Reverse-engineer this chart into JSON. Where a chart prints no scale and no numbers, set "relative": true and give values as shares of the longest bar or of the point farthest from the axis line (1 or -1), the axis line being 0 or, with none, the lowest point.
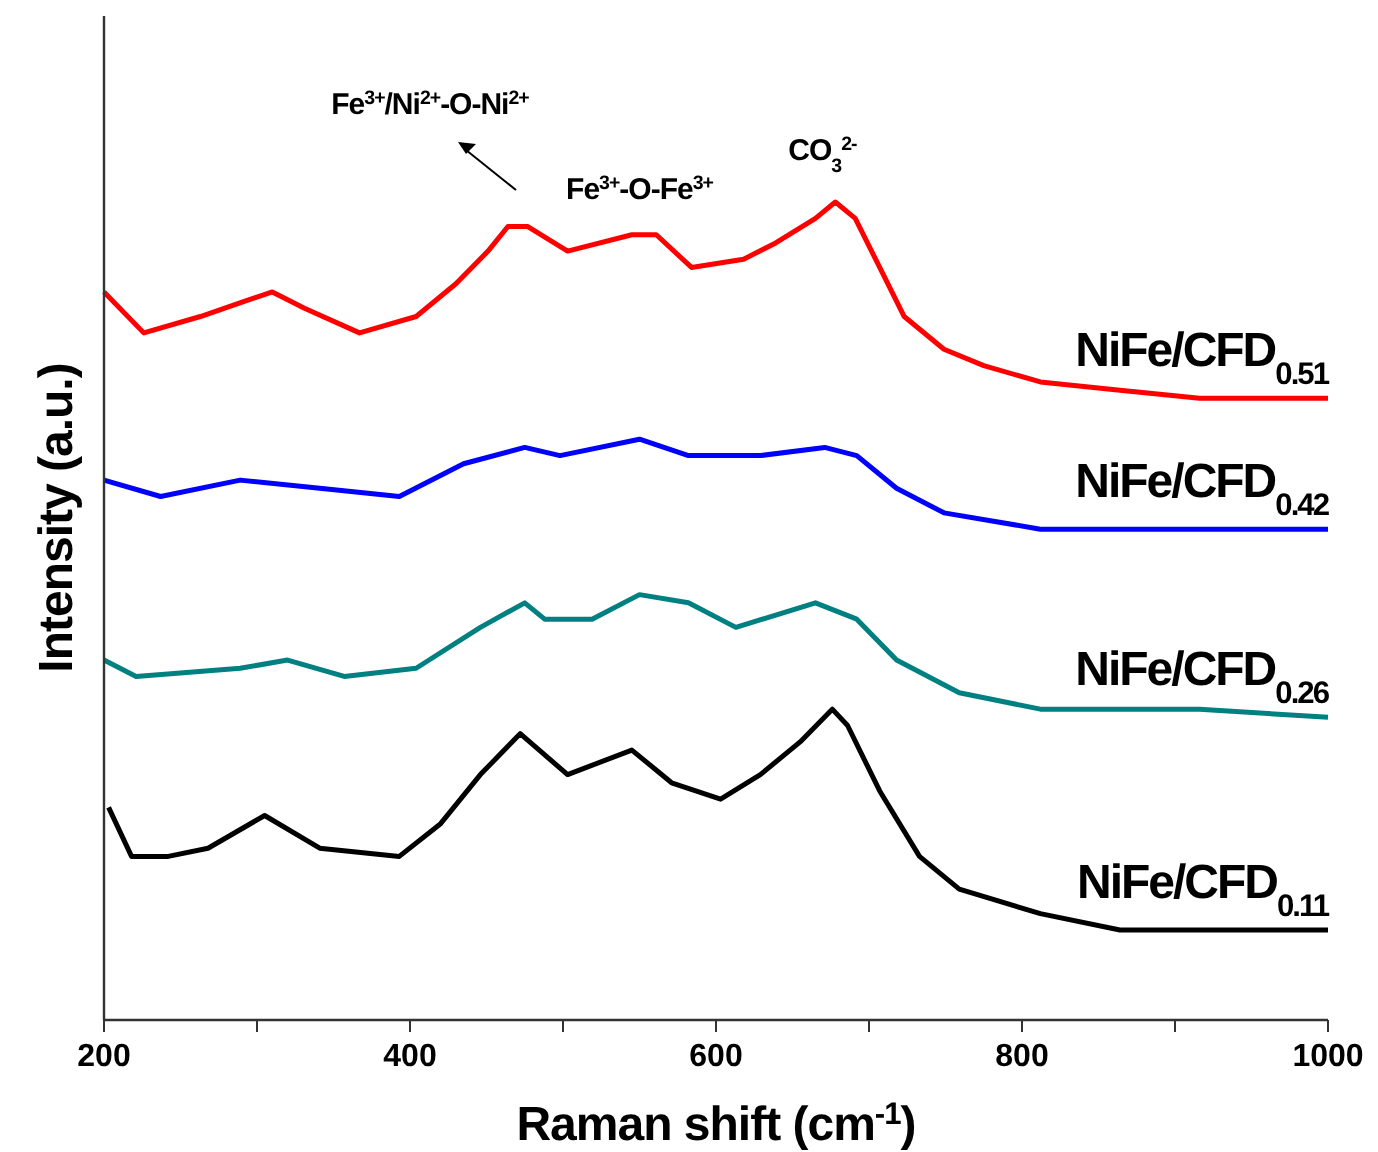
{
  "chart_data": {
    "type": "line",
    "relative": true,
    "xlabel": "Raman shift (cm$^{-1}$)",
    "ylabel": "Intensity (a.u.)",
    "xlim": [
      200,
      1000
    ],
    "xticks": [
      200,
      {
        "value": 300,
        "label": null
      },
      400,
      {
        "value": 500,
        "label": null
      },
      600,
      {
        "value": 700,
        "label": null
      },
      800,
      {
        "value": 900,
        "label": null
      },
      1000
    ],
    "grid": false,
    "marker": "none",
    "line_style": "solid",
    "annotations": [
      "Fe$^{3+}$/Ni$^{2+}$-O-Ni$^{2+}$",
      {
        "text": "Fe$^{3+}$-O-Fe$^{3+}$",
        "x": 550,
        "y": 0.96
      },
      {
        "text": "CO$_{3}$$^{2-}$",
        "x": 680,
        "y": 1.0
      }
    ],
    "series": [
      {
        "name": "NiFe/CFD$_{0.51}$",
        "color": "#ff0000",
        "x": [
          200,
          226,
          263,
          294,
          310,
          331,
          367,
          404,
          430,
          451,
          464,
          477,
          503,
          545,
          561,
          584,
          618,
          639,
          665,
          678,
          691,
          707,
          723,
          749,
          775,
          812,
          864,
          916,
          1000
        ],
        "values": [
          0.89,
          0.84,
          0.86,
          0.88,
          0.89,
          0.87,
          0.84,
          0.86,
          0.9,
          0.94,
          0.97,
          0.97,
          0.94,
          0.96,
          0.96,
          0.92,
          0.93,
          0.95,
          0.98,
          1.0,
          0.98,
          0.92,
          0.86,
          0.82,
          0.8,
          0.78,
          0.77,
          0.76,
          0.76
        ]
      },
      {
        "name": "NiFe/CFD$_{0.42}$",
        "color": "#0000ff",
        "x": [
          200,
          237,
          289,
          341,
          393,
          435,
          475,
          498,
          550,
          582,
          629,
          671,
          692,
          718,
          749,
          812,
          916,
          1000
        ],
        "values": [
          0.66,
          0.64,
          0.66,
          0.65,
          0.64,
          0.68,
          0.7,
          0.69,
          0.71,
          0.69,
          0.69,
          0.7,
          0.69,
          0.65,
          0.62,
          0.6,
          0.6,
          0.6
        ]
      },
      {
        "name": "NiFe/CFD$_{0.26}$",
        "color": "#008080",
        "x": [
          200,
          221,
          289,
          320,
          357,
          404,
          446,
          475,
          488,
          519,
          550,
          582,
          613,
          665,
          692,
          718,
          759,
          812,
          916,
          1000
        ],
        "values": [
          0.44,
          0.42,
          0.43,
          0.44,
          0.42,
          0.43,
          0.48,
          0.51,
          0.49,
          0.49,
          0.52,
          0.51,
          0.48,
          0.51,
          0.49,
          0.44,
          0.4,
          0.38,
          0.38,
          0.37
        ]
      },
      {
        "name": "NiFe/CFD$_{0.11}$",
        "color": "#000000",
        "x": [
          203,
          218,
          242,
          268,
          305,
          341,
          393,
          420,
          446,
          472,
          503,
          545,
          571,
          603,
          629,
          655,
          676,
          686,
          707,
          733,
          759,
          812,
          864,
          1000
        ],
        "values": [
          0.26,
          0.2,
          0.2,
          0.21,
          0.25,
          0.21,
          0.2,
          0.24,
          0.3,
          0.35,
          0.3,
          0.33,
          0.29,
          0.27,
          0.3,
          0.34,
          0.38,
          0.36,
          0.28,
          0.2,
          0.16,
          0.13,
          0.11,
          0.11
        ]
      }
    ]
  }
}
